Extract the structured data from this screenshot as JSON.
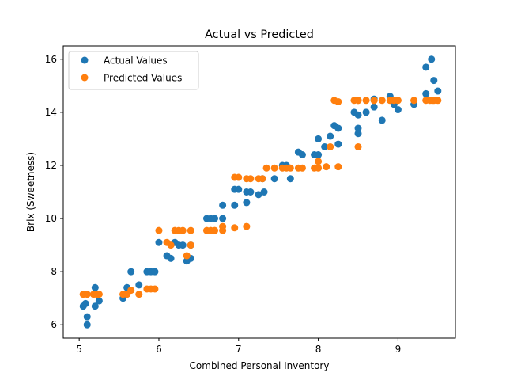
{
  "chart_data": {
    "type": "scatter",
    "title": "Actual vs Predicted",
    "xlabel": "Combined Personal Inventory",
    "ylabel": "Brix (Sweetness)",
    "xlim": [
      4.8,
      9.72
    ],
    "ylim": [
      5.5,
      16.5
    ],
    "xticks": [
      5,
      6,
      7,
      8,
      9
    ],
    "yticks": [
      6,
      8,
      10,
      12,
      14,
      16
    ],
    "xtick_labels": [
      "5",
      "6",
      "7",
      "8",
      "9"
    ],
    "ytick_labels": [
      "6",
      "8",
      "10",
      "12",
      "14",
      "16"
    ],
    "grid": false,
    "legend_position": "upper-left",
    "series": [
      {
        "name": "Actual Values",
        "color": "#1f77b4",
        "points": [
          [
            5.05,
            6.7
          ],
          [
            5.08,
            6.8
          ],
          [
            5.1,
            6.3
          ],
          [
            5.1,
            6.0
          ],
          [
            5.2,
            6.7
          ],
          [
            5.2,
            7.4
          ],
          [
            5.25,
            6.9
          ],
          [
            5.55,
            7.0
          ],
          [
            5.6,
            7.4
          ],
          [
            5.65,
            8.0
          ],
          [
            5.75,
            7.5
          ],
          [
            5.85,
            8.0
          ],
          [
            5.9,
            8.0
          ],
          [
            5.95,
            8.0
          ],
          [
            6.0,
            9.1
          ],
          [
            6.1,
            8.6
          ],
          [
            6.15,
            8.5
          ],
          [
            6.2,
            9.1
          ],
          [
            6.25,
            9.0
          ],
          [
            6.3,
            9.0
          ],
          [
            6.35,
            8.4
          ],
          [
            6.4,
            8.5
          ],
          [
            6.4,
            9.0
          ],
          [
            6.6,
            10.0
          ],
          [
            6.65,
            10.0
          ],
          [
            6.7,
            10.0
          ],
          [
            6.8,
            10.5
          ],
          [
            6.8,
            10.0
          ],
          [
            6.95,
            10.5
          ],
          [
            6.95,
            11.1
          ],
          [
            7.0,
            11.1
          ],
          [
            7.1,
            11.0
          ],
          [
            7.1,
            10.6
          ],
          [
            7.15,
            11.0
          ],
          [
            7.25,
            10.9
          ],
          [
            7.3,
            11.5
          ],
          [
            7.32,
            11.0
          ],
          [
            7.45,
            11.5
          ],
          [
            7.55,
            12.0
          ],
          [
            7.6,
            12.0
          ],
          [
            7.65,
            11.5
          ],
          [
            7.75,
            12.5
          ],
          [
            7.8,
            12.4
          ],
          [
            7.95,
            12.4
          ],
          [
            8.0,
            12.4
          ],
          [
            8.0,
            13.0
          ],
          [
            8.08,
            12.7
          ],
          [
            8.15,
            13.1
          ],
          [
            8.2,
            13.5
          ],
          [
            8.25,
            13.4
          ],
          [
            8.25,
            12.8
          ],
          [
            8.45,
            14.0
          ],
          [
            8.5,
            13.9
          ],
          [
            8.5,
            13.4
          ],
          [
            8.5,
            13.2
          ],
          [
            8.6,
            14.0
          ],
          [
            8.7,
            14.2
          ],
          [
            8.7,
            14.5
          ],
          [
            8.8,
            13.7
          ],
          [
            8.9,
            14.6
          ],
          [
            8.95,
            14.3
          ],
          [
            9.0,
            14.1
          ],
          [
            9.2,
            14.3
          ],
          [
            9.35,
            14.7
          ],
          [
            9.35,
            15.7
          ],
          [
            9.42,
            16.0
          ],
          [
            9.45,
            15.2
          ],
          [
            9.5,
            14.8
          ]
        ]
      },
      {
        "name": "Predicted Values",
        "color": "#ff7f0e",
        "points": [
          [
            5.05,
            7.15
          ],
          [
            5.1,
            7.15
          ],
          [
            5.18,
            7.15
          ],
          [
            5.22,
            7.15
          ],
          [
            5.25,
            7.15
          ],
          [
            5.55,
            7.15
          ],
          [
            5.6,
            7.15
          ],
          [
            5.65,
            7.3
          ],
          [
            5.75,
            7.15
          ],
          [
            5.85,
            7.35
          ],
          [
            5.9,
            7.35
          ],
          [
            5.95,
            7.35
          ],
          [
            6.0,
            9.55
          ],
          [
            6.1,
            9.1
          ],
          [
            6.15,
            9.0
          ],
          [
            6.2,
            9.55
          ],
          [
            6.25,
            9.55
          ],
          [
            6.3,
            9.55
          ],
          [
            6.35,
            8.6
          ],
          [
            6.4,
            9.55
          ],
          [
            6.4,
            9.0
          ],
          [
            6.6,
            9.55
          ],
          [
            6.65,
            9.55
          ],
          [
            6.7,
            9.55
          ],
          [
            6.8,
            9.55
          ],
          [
            6.8,
            9.7
          ],
          [
            6.95,
            9.65
          ],
          [
            6.95,
            11.55
          ],
          [
            7.0,
            11.55
          ],
          [
            7.1,
            11.5
          ],
          [
            7.1,
            9.7
          ],
          [
            7.15,
            11.5
          ],
          [
            7.25,
            11.5
          ],
          [
            7.3,
            11.5
          ],
          [
            7.35,
            11.9
          ],
          [
            7.45,
            11.9
          ],
          [
            7.55,
            11.9
          ],
          [
            7.6,
            11.9
          ],
          [
            7.65,
            11.9
          ],
          [
            7.75,
            11.9
          ],
          [
            7.8,
            11.9
          ],
          [
            7.95,
            11.9
          ],
          [
            8.0,
            11.9
          ],
          [
            8.0,
            12.15
          ],
          [
            8.1,
            11.95
          ],
          [
            8.15,
            12.7
          ],
          [
            8.2,
            14.45
          ],
          [
            8.25,
            14.4
          ],
          [
            8.25,
            11.95
          ],
          [
            8.45,
            14.45
          ],
          [
            8.5,
            14.45
          ],
          [
            8.5,
            14.45
          ],
          [
            8.5,
            12.7
          ],
          [
            8.6,
            14.45
          ],
          [
            8.7,
            14.45
          ],
          [
            8.7,
            14.45
          ],
          [
            8.8,
            14.45
          ],
          [
            8.9,
            14.45
          ],
          [
            8.95,
            14.45
          ],
          [
            9.0,
            14.45
          ],
          [
            9.2,
            14.45
          ],
          [
            9.35,
            14.45
          ],
          [
            9.4,
            14.45
          ],
          [
            9.43,
            14.45
          ],
          [
            9.45,
            14.45
          ],
          [
            9.5,
            14.45
          ]
        ]
      }
    ]
  }
}
